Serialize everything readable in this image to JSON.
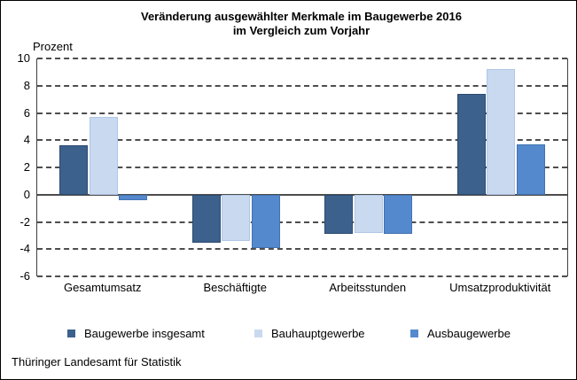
{
  "title": {
    "line1": "Veränderung ausgewählter Merkmale im Baugewerbe 2016",
    "line2": "im Vergleich zum Vorjahr"
  },
  "chart_data": {
    "type": "bar",
    "title": "Veränderung ausgewählter Merkmale im Baugewerbe 2016 im Vergleich zum Vorjahr",
    "ylabel": "Prozent",
    "ylim": [
      -6,
      10
    ],
    "ytick_step": 2,
    "yticks": [
      10,
      8,
      6,
      4,
      2,
      0,
      -2,
      -4,
      -6
    ],
    "grid": "horizontal dashed gridlines, solid zero line, solid left and right plot borders",
    "legend_position": "bottom",
    "categories": [
      "Gesamtumsatz",
      "Beschäftigte",
      "Arbeitsstunden",
      "Umsatzproduktivität"
    ],
    "series": [
      {
        "name": "Baugewerbe insgesamt",
        "color": "#3C618C",
        "border_color": "#2C4A6E",
        "values": [
          3.6,
          -3.5,
          -2.9,
          7.4
        ]
      },
      {
        "name": "Bauhauptgewerbe",
        "color": "#C9D9F0",
        "border_color": "#AFC6E6",
        "values": [
          5.7,
          -3.4,
          -2.8,
          9.2
        ]
      },
      {
        "name": "Ausbaugewerbe",
        "color": "#5589CE",
        "border_color": "#4273B0",
        "values": [
          -0.4,
          -3.9,
          -2.9,
          3.7
        ]
      }
    ]
  },
  "footer": {
    "source": "Thüringer Landesamt für Statistik"
  }
}
